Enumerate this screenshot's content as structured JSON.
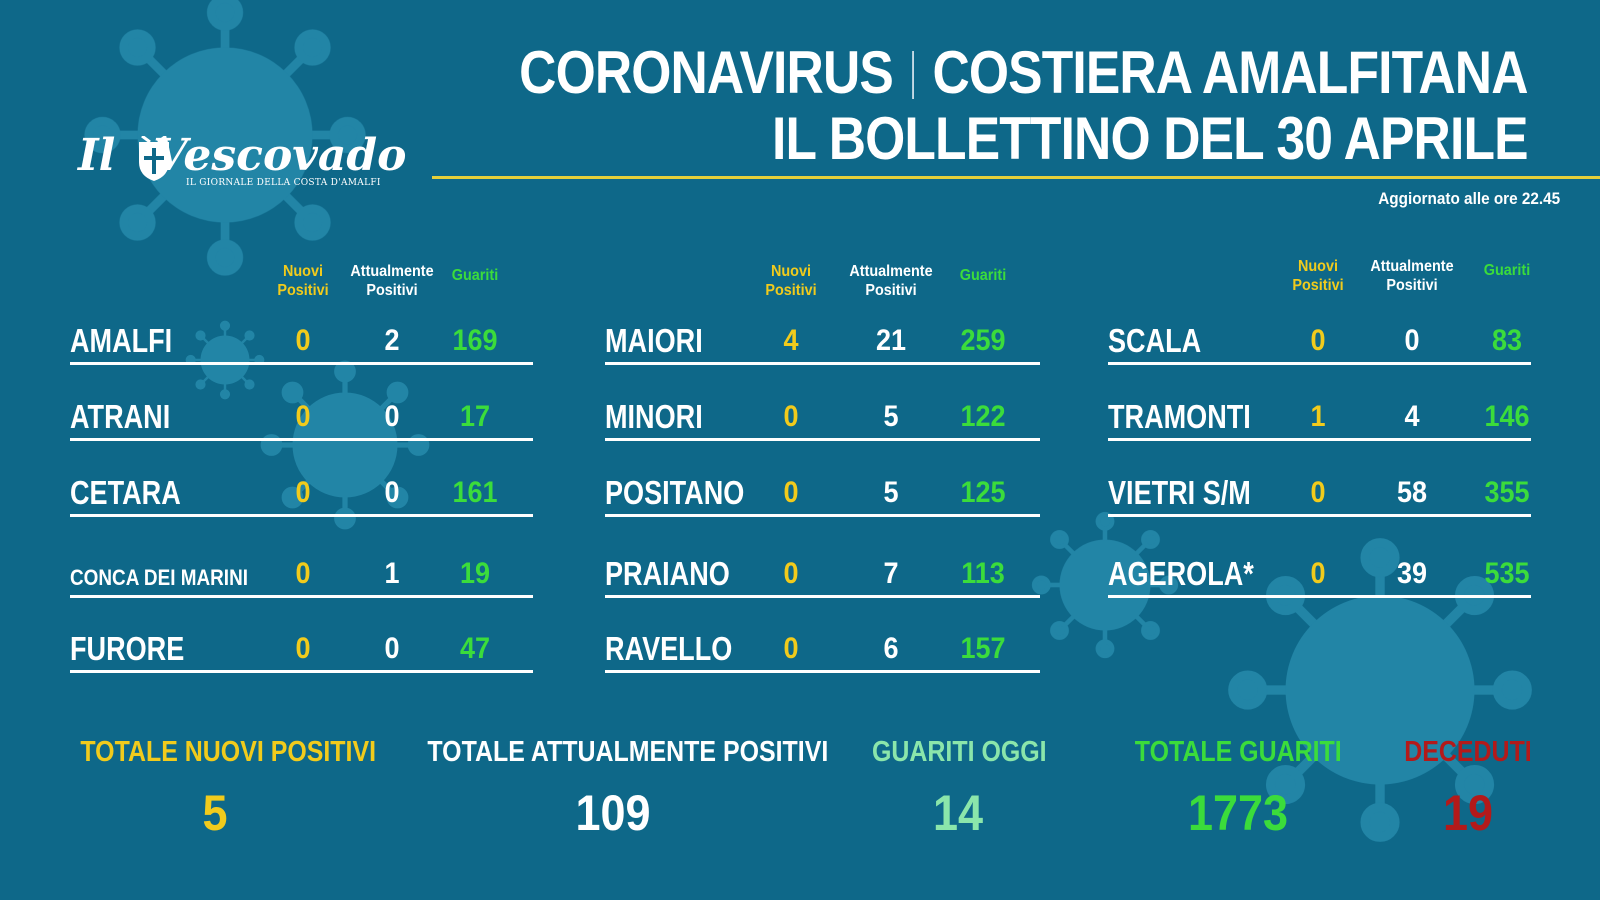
{
  "header": {
    "title_left": "CORONAVIRUS",
    "title_right": "COSTIERA AMALFITANA",
    "subtitle": "IL BOLLETTINO DEL 30 APRILE",
    "updated": "Aggiornato alle ore 22.45"
  },
  "logo": {
    "name_part1": "Il",
    "name_part2": "Vescovado",
    "tagline": "IL GIORNALE DELLA COSTA D'AMALFI"
  },
  "column_headers": {
    "nuovi_line1": "Nuovi",
    "nuovi_line2": "Positivi",
    "attuali_line1": "Attualmente",
    "attuali_line2": "Positivi",
    "guariti": "Guariti"
  },
  "towns": [
    {
      "name": "AMALFI",
      "nuovi": "0",
      "attuali": "2",
      "guariti": "169"
    },
    {
      "name": "ATRANI",
      "nuovi": "0",
      "attuali": "0",
      "guariti": "17"
    },
    {
      "name": "CETARA",
      "nuovi": "0",
      "attuali": "0",
      "guariti": "161"
    },
    {
      "name": "CONCA DEI MARINI",
      "nuovi": "0",
      "attuali": "1",
      "guariti": "19"
    },
    {
      "name": "FURORE",
      "nuovi": "0",
      "attuali": "0",
      "guariti": "47"
    },
    {
      "name": "MAIORI",
      "nuovi": "4",
      "attuali": "21",
      "guariti": "259"
    },
    {
      "name": "MINORI",
      "nuovi": "0",
      "attuali": "5",
      "guariti": "122"
    },
    {
      "name": "POSITANO",
      "nuovi": "0",
      "attuali": "5",
      "guariti": "125"
    },
    {
      "name": "PRAIANO",
      "nuovi": "0",
      "attuali": "7",
      "guariti": "113"
    },
    {
      "name": "RAVELLO",
      "nuovi": "0",
      "attuali": "6",
      "guariti": "157"
    },
    {
      "name": "SCALA",
      "nuovi": "0",
      "attuali": "0",
      "guariti": "83"
    },
    {
      "name": "TRAMONTI",
      "nuovi": "1",
      "attuali": "4",
      "guariti": "146"
    },
    {
      "name": "VIETRI S/M",
      "nuovi": "0",
      "attuali": "58",
      "guariti": "355"
    },
    {
      "name": "AGEROLA*",
      "nuovi": "0",
      "attuali": "39",
      "guariti": "535"
    }
  ],
  "totals": {
    "nuovi_label": "TOTALE NUOVI POSITIVI",
    "nuovi_value": "5",
    "attuali_label": "TOTALE ATTUALMENTE POSITIVI",
    "attuali_value": "109",
    "oggi_label": "GUARITI OGGI",
    "oggi_value": "14",
    "guariti_label": "TOTALE GUARITI",
    "guariti_value": "1773",
    "deceduti_label": "DECEDUTI",
    "deceduti_value": "19"
  },
  "colors": {
    "background": "#0e6889",
    "nuovi": "#f1cb1c",
    "guariti": "#3bdc3b",
    "guariti_oggi": "#8be6ab",
    "deceduti": "#b31a1a",
    "accent_line": "#e5d03a"
  }
}
